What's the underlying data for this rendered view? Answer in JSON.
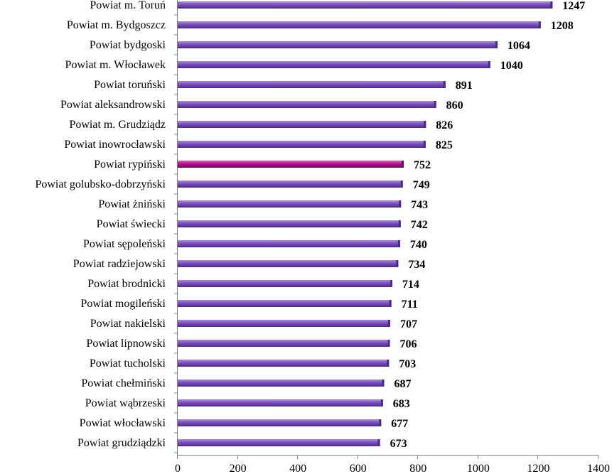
{
  "chart_data": {
    "type": "bar",
    "orientation": "horizontal",
    "categories": [
      "Powiat m. Toruń",
      "Powiat m. Bydgoszcz",
      "Powiat bydgoski",
      "Powiat m. Włocławek",
      "Powiat toruński",
      "Powiat aleksandrowski",
      "Powiat m. Grudziądz",
      "Powiat inowrocławski",
      "Powiat rypiński",
      "Powiat golubsko-dobrzyński",
      "Powiat żniński",
      "Powiat świecki",
      "Powiat sępoleński",
      "Powiat radziejowski",
      "Powiat brodnicki",
      "Powiat mogileński",
      "Powiat nakielski",
      "Powiat lipnowski",
      "Powiat tucholski",
      "Powiat chełmiński",
      "Powiat wąbrzeski",
      "Powiat włocławski",
      "Powiat grudziądzki"
    ],
    "values": [
      1247,
      1208,
      1064,
      1040,
      891,
      860,
      826,
      825,
      752,
      749,
      743,
      742,
      740,
      734,
      714,
      711,
      707,
      706,
      703,
      687,
      683,
      677,
      673
    ],
    "highlight_index": 8,
    "xlim": [
      0,
      1400
    ],
    "xticks": [
      0,
      200,
      400,
      600,
      800,
      1000,
      1200,
      1400
    ],
    "title": "",
    "xlabel": "",
    "ylabel": "",
    "grid": false,
    "legend": "none",
    "colors": {
      "bar": "#7b4fc0",
      "bar_light": "#a98be0",
      "bar_dark": "#4b2a85",
      "highlight": "#b0128f",
      "highlight_light": "#e060c0",
      "highlight_dark": "#6e0b5a",
      "axis": "#808080"
    }
  }
}
